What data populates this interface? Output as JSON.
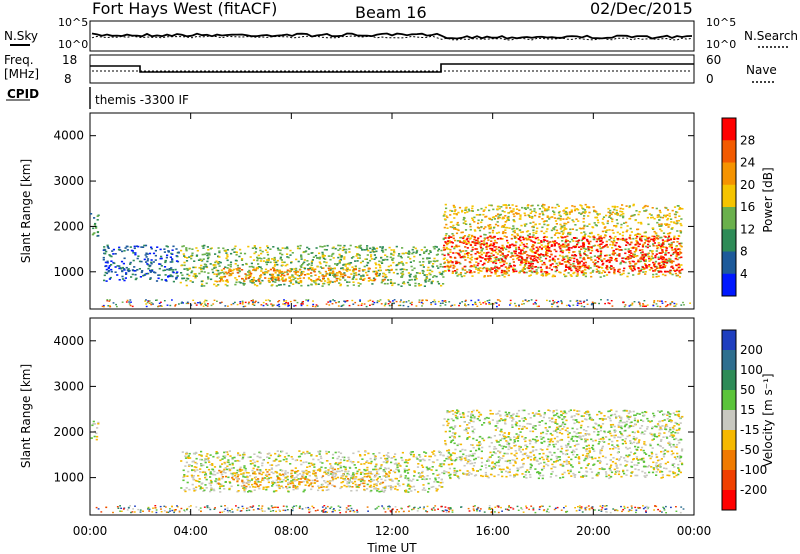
{
  "header": {
    "title": "Fort Hays West (fitACF)",
    "beam": "Beam 16",
    "date": "02/Dec/2015"
  },
  "status_panels": {
    "nsky_label": "N.Sky",
    "nsearch_label": "N.Search",
    "noise_ticks": [
      "10^5",
      "10^0"
    ],
    "freq_label": "Freq.",
    "freq_unit": "[MHz]",
    "freq_ticks": [
      "18",
      "8"
    ],
    "nave_label": "Nave",
    "nave_ticks": [
      "60",
      "0"
    ],
    "cpid_label": "CPID",
    "cpid_text": "themis -3300 IF"
  },
  "chart_data": [
    {
      "type": "heatmap",
      "quantity": "Power",
      "ylabel": "Slant Range [km]",
      "colorbar_label": "Power [dB]",
      "colorbar_ticks": [
        "4",
        "8",
        "12",
        "16",
        "20",
        "24",
        "28"
      ],
      "colorbar_colors": [
        "#0018ff",
        "#1d5a9a",
        "#2e8b57",
        "#6ab04c",
        "#f5c400",
        "#f59300",
        "#f25a00",
        "#ff0000"
      ],
      "ylim": [
        180,
        4500
      ],
      "yticks": [
        "1000",
        "2000",
        "3000",
        "4000"
      ],
      "xlim": [
        0,
        24
      ],
      "echo_regions": [
        {
          "t_start": 0.0,
          "t_end": 0.3,
          "range_low": 1800,
          "range_high": 2300,
          "level": 2
        },
        {
          "t_start": 0.5,
          "t_end": 3.5,
          "range_low": 800,
          "range_high": 1600,
          "level": 1
        },
        {
          "t_start": 3.5,
          "t_end": 14.0,
          "range_low": 700,
          "range_high": 1600,
          "level": 3
        },
        {
          "t_start": 5.0,
          "t_end": 12.0,
          "range_low": 800,
          "range_high": 1100,
          "level": 5
        },
        {
          "t_start": 14.0,
          "t_end": 23.5,
          "range_low": 900,
          "range_high": 2500,
          "level": 4
        },
        {
          "t_start": 14.0,
          "t_end": 23.5,
          "range_low": 1000,
          "range_high": 1800,
          "level": 7
        }
      ]
    },
    {
      "type": "heatmap",
      "quantity": "Velocity",
      "ylabel": "Slant Range [km]",
      "colorbar_label": "Velocity [m s⁻¹]",
      "colorbar_ticks": [
        "200",
        "100",
        "50",
        "15",
        "-15",
        "-50",
        "-100",
        "-200"
      ],
      "colorbar_colors": [
        "#1f3fbf",
        "#2f6f8f",
        "#2e8b57",
        "#5bc43a",
        "#c8c8c0",
        "#f5b800",
        "#f07a00",
        "#f04000",
        "#ff0000"
      ],
      "ylim": [
        180,
        4500
      ],
      "yticks": [
        "1000",
        "2000",
        "3000",
        "4000"
      ],
      "xlim": [
        0,
        24
      ],
      "echo_regions": [
        {
          "t_start": 0.0,
          "t_end": 0.3,
          "range_low": 1800,
          "range_high": 2300,
          "level": 4
        },
        {
          "t_start": 3.5,
          "t_end": 14.0,
          "range_low": 700,
          "range_high": 1600,
          "level": 4
        },
        {
          "t_start": 5.0,
          "t_end": 12.0,
          "range_low": 800,
          "range_high": 1200,
          "level": 5
        },
        {
          "t_start": 14.0,
          "t_end": 23.5,
          "range_low": 1000,
          "range_high": 2500,
          "level": 4
        }
      ]
    }
  ],
  "time_axis": {
    "ticks": [
      "00:00",
      "04:00",
      "08:00",
      "12:00",
      "16:00",
      "20:00",
      "00:00"
    ],
    "label": "Time UT"
  }
}
